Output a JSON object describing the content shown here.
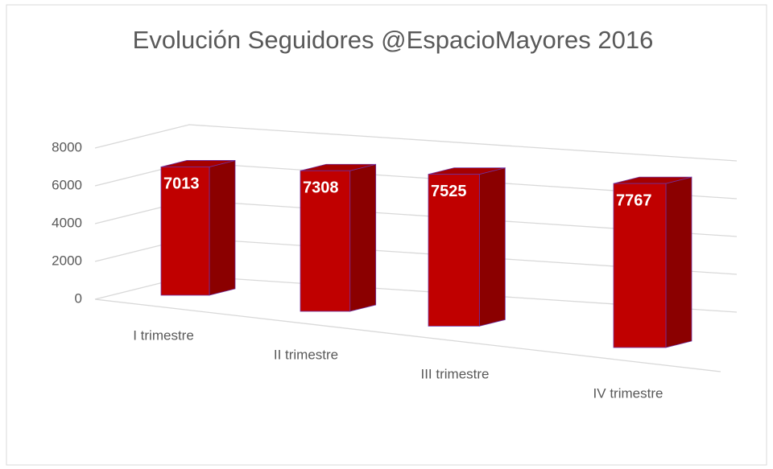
{
  "chart_data": {
    "type": "bar3d",
    "title": "Evolución Seguidores @EspacioMayores 2016",
    "categories": [
      "I trimestre",
      "II trimestre",
      "III trimestre",
      "IV trimestre"
    ],
    "values": [
      7013,
      7308,
      7525,
      7767
    ],
    "color": "#c00000",
    "ylim": [
      0,
      8000
    ],
    "yticks": [
      0,
      2000,
      4000,
      6000,
      8000
    ],
    "grid": true
  }
}
